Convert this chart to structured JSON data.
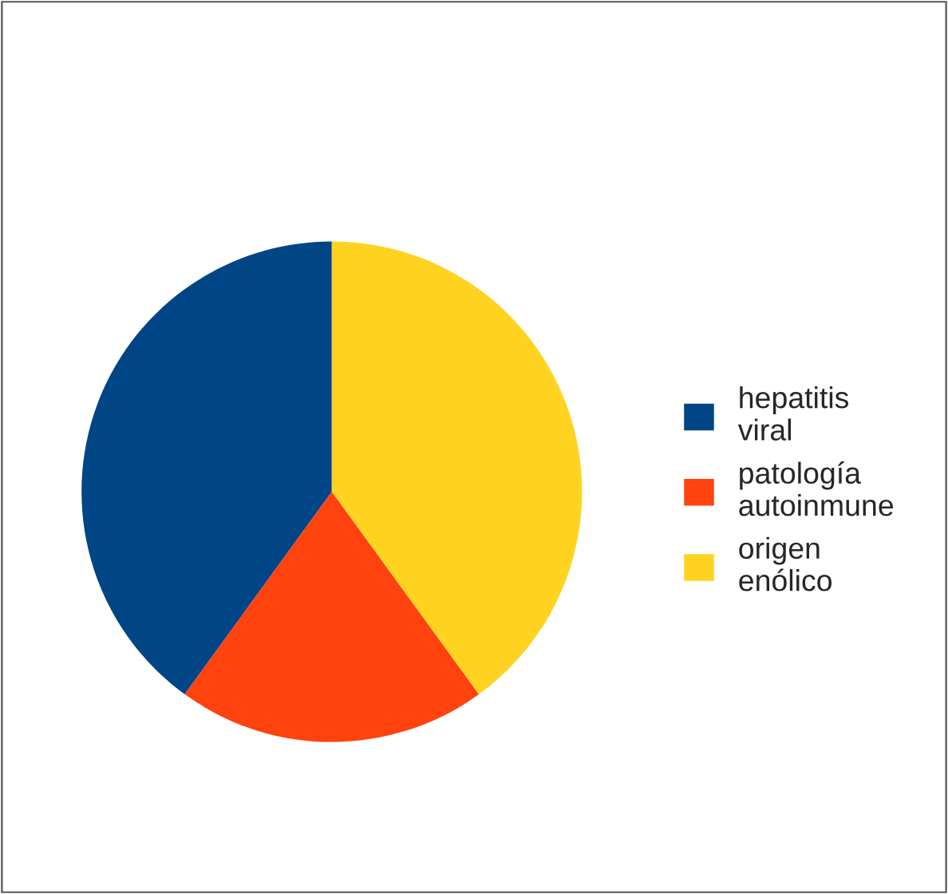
{
  "chart_data": {
    "type": "pie",
    "categories": [
      "hepatitis viral",
      "patología autoinmune",
      "origen enólico"
    ],
    "values": [
      40,
      20,
      40
    ],
    "colors": [
      "#004586",
      "#ff420e",
      "#ffd320"
    ],
    "legend": "right"
  }
}
